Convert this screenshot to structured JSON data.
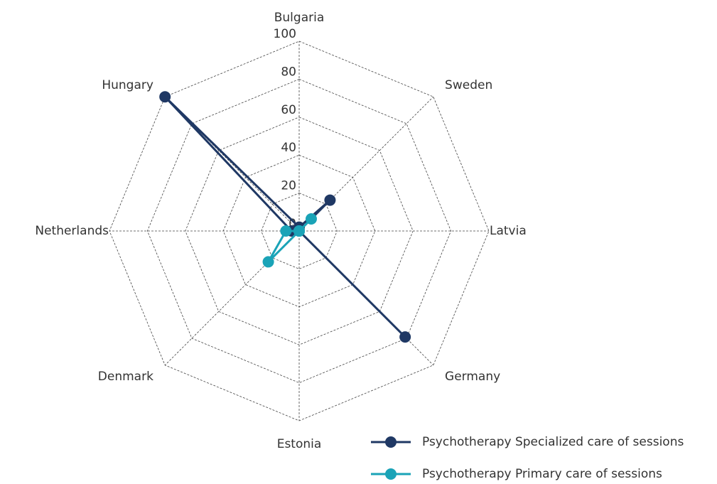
{
  "chart_data": {
    "type": "radar",
    "categories": [
      "Bulgaria",
      "Sweden",
      "Latvia",
      "Germany",
      "Estonia",
      "Denmark",
      "Netherlands",
      "Hungary"
    ],
    "series": [
      {
        "name": "Psychotherapy Specialized care of sessions",
        "color": "#1f3864",
        "values": [
          2,
          23,
          0,
          79,
          0,
          0,
          4,
          100
        ]
      },
      {
        "name": "Psychotherapy Primary care of sessions",
        "color": "#1aa3b7",
        "values": [
          0,
          9,
          0,
          0,
          0,
          23,
          7,
          0
        ]
      }
    ],
    "ylim": [
      0,
      100
    ],
    "yticks": [
      0,
      20,
      40,
      60,
      80,
      100
    ],
    "grid": true
  }
}
